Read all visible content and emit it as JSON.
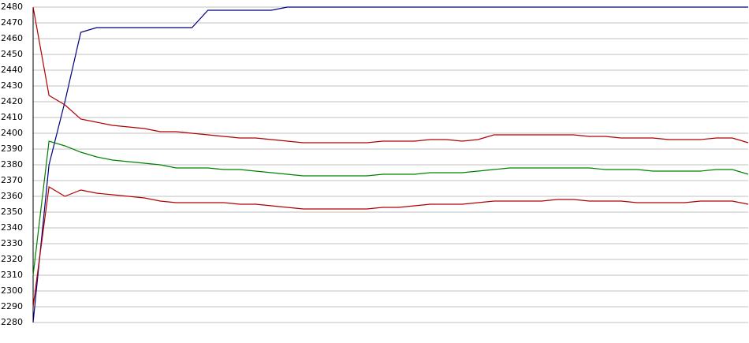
{
  "chart_data": {
    "type": "line",
    "categories": [
      null,
      null,
      null,
      null,
      null,
      null,
      null,
      null,
      null,
      null,
      null,
      null,
      null,
      null,
      null,
      null,
      null,
      null,
      null,
      null,
      null,
      null,
      null,
      null,
      null,
      null,
      null,
      null,
      null,
      null,
      null,
      null,
      null,
      null,
      null,
      null,
      null,
      null,
      null,
      null,
      null,
      null,
      null,
      null,
      null,
      null
    ],
    "series": [
      {
        "color": "#000080",
        "values": [
          2280,
          2380,
          2420,
          2464,
          2467,
          2467,
          2467,
          2467,
          2467,
          2467,
          2467,
          2478,
          2478,
          2478,
          2478,
          2478,
          2480,
          2480,
          2480,
          2480,
          2480,
          2480,
          2480,
          2480,
          2480,
          2480,
          2480,
          2480,
          2480,
          2480,
          2480,
          2480,
          2480,
          2480,
          2480,
          2480,
          2480,
          2480,
          2480,
          2480,
          2480,
          2480,
          2480,
          2480,
          2480,
          2480
        ]
      },
      {
        "color": "#b00000",
        "values": [
          2480,
          2424,
          2418,
          2409,
          2407,
          2405,
          2404,
          2403,
          2401,
          2401,
          2400,
          2399,
          2398,
          2397,
          2397,
          2396,
          2395,
          2394,
          2394,
          2394,
          2394,
          2394,
          2395,
          2395,
          2395,
          2396,
          2396,
          2395,
          2396,
          2399,
          2399,
          2399,
          2399,
          2399,
          2399,
          2398,
          2398,
          2397,
          2397,
          2397,
          2396,
          2396,
          2396,
          2397,
          2397,
          2394
        ]
      },
      {
        "color": "#008000",
        "values": [
          2310,
          2395,
          2392,
          2388,
          2385,
          2383,
          2382,
          2381,
          2380,
          2378,
          2378,
          2378,
          2377,
          2377,
          2376,
          2375,
          2374,
          2373,
          2373,
          2373,
          2373,
          2373,
          2374,
          2374,
          2374,
          2375,
          2375,
          2375,
          2376,
          2377,
          2378,
          2378,
          2378,
          2378,
          2378,
          2378,
          2377,
          2377,
          2377,
          2376,
          2376,
          2376,
          2376,
          2377,
          2377,
          2374
        ]
      },
      {
        "color": "#b00000",
        "values": [
          2290,
          2366,
          2360,
          2364,
          2362,
          2361,
          2360,
          2359,
          2357,
          2356,
          2356,
          2356,
          2356,
          2355,
          2355,
          2354,
          2353,
          2352,
          2352,
          2352,
          2352,
          2352,
          2353,
          2353,
          2354,
          2355,
          2355,
          2355,
          2356,
          2357,
          2357,
          2357,
          2357,
          2358,
          2358,
          2357,
          2357,
          2357,
          2356,
          2356,
          2356,
          2356,
          2357,
          2357,
          2357,
          2355
        ]
      }
    ],
    "ylim": [
      2280,
      2480
    ],
    "yticks": [
      2280,
      2290,
      2300,
      2310,
      2320,
      2330,
      2340,
      2350,
      2360,
      2370,
      2380,
      2390,
      2400,
      2410,
      2420,
      2430,
      2440,
      2450,
      2460,
      2470,
      2480
    ],
    "grid": true
  }
}
